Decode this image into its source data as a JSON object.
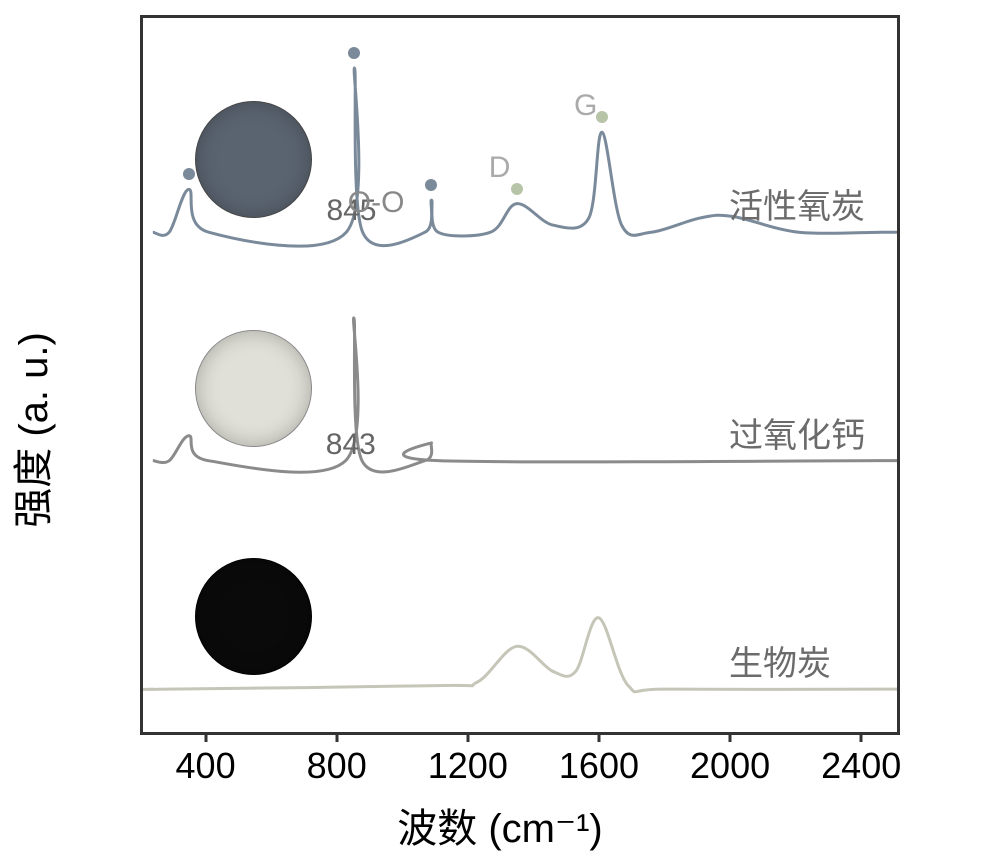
{
  "chart": {
    "type": "line-spectra",
    "xlabel": "波数 (cm⁻¹)",
    "ylabel": "强度 (a. u.)",
    "xlim": [
      200,
      2500
    ],
    "ylim": [
      0,
      1
    ],
    "xtick_values": [
      400,
      800,
      1200,
      1600,
      2000,
      2400
    ],
    "xtick_labels": [
      "400",
      "800",
      "1200",
      "1600",
      "2000",
      "2400"
    ],
    "background_color": "#ffffff",
    "border_color": "#333333",
    "line_width": 3,
    "spectra": [
      {
        "key": "active_oxygen_carbon",
        "label": "活性氧炭",
        "y_offset": 0.7,
        "color": "#7a8a9a",
        "sample_fill": "#5a6470",
        "sample_stroke": "#444",
        "peaks": [
          {
            "x": 280,
            "h": 0.0
          },
          {
            "x": 340,
            "h": 0.06
          },
          {
            "x": 400,
            "h": 0.0
          },
          {
            "x": 820,
            "h": 0.0
          },
          {
            "x": 845,
            "h": 0.23
          },
          {
            "x": 870,
            "h": 0.0
          },
          {
            "x": 1060,
            "h": 0.0
          },
          {
            "x": 1080,
            "h": 0.045
          },
          {
            "x": 1100,
            "h": 0.0
          },
          {
            "x": 1260,
            "h": 0.0
          },
          {
            "x": 1340,
            "h": 0.04
          },
          {
            "x": 1450,
            "h": 0.01
          },
          {
            "x": 1560,
            "h": 0.02
          },
          {
            "x": 1600,
            "h": 0.14
          },
          {
            "x": 1660,
            "h": 0.01
          },
          {
            "x": 1750,
            "h": 0.0
          },
          {
            "x": 1900,
            "h": 0.02
          },
          {
            "x": 2000,
            "h": 0.022
          },
          {
            "x": 2200,
            "h": 0.0
          },
          {
            "x": 2450,
            "h": 0.0
          }
        ],
        "markers": [
          {
            "x": 340,
            "color": "#7a8a9a"
          },
          {
            "x": 845,
            "color": "#7a8a9a"
          },
          {
            "x": 1080,
            "color": "#7a8a9a"
          },
          {
            "x": 1340,
            "color": "#b8c4a8"
          },
          {
            "x": 1600,
            "color": "#b8c4a8"
          }
        ],
        "peak_annotations": [
          {
            "x": 845,
            "text": "845",
            "dy": -35
          },
          {
            "x": 910,
            "text": "O-O",
            "dy": -8,
            "color": "#888"
          },
          {
            "x": 1340,
            "text": "D",
            "dy": -50,
            "color": "#aaa"
          },
          {
            "x": 1600,
            "text": "G",
            "dy": -40,
            "color": "#aaa"
          }
        ]
      },
      {
        "key": "calcium_peroxide",
        "label": "过氧化钙",
        "y_offset": 0.38,
        "color": "#8b8b8b",
        "sample_fill": "#e0e0d8",
        "sample_stroke": "#888",
        "peaks": [
          {
            "x": 280,
            "h": 0.0
          },
          {
            "x": 340,
            "h": 0.035
          },
          {
            "x": 400,
            "h": 0.0
          },
          {
            "x": 818,
            "h": 0.0
          },
          {
            "x": 843,
            "h": 0.2
          },
          {
            "x": 868,
            "h": 0.0
          },
          {
            "x": 1060,
            "h": 0.0
          },
          {
            "x": 1080,
            "h": 0.025
          },
          {
            "x": 1100,
            "h": 0.0
          },
          {
            "x": 2450,
            "h": 0.0
          }
        ],
        "markers": [],
        "peak_annotations": [
          {
            "x": 843,
            "text": "843",
            "dy": -30
          }
        ]
      },
      {
        "key": "biochar",
        "label": "生物炭",
        "y_offset": 0.06,
        "color": "#c5c5b8",
        "sample_fill": "#0a0a0a",
        "sample_stroke": "#000",
        "peaks": [
          {
            "x": 280,
            "h": 0.0
          },
          {
            "x": 1100,
            "h": 0.005
          },
          {
            "x": 1220,
            "h": 0.01
          },
          {
            "x": 1340,
            "h": 0.06
          },
          {
            "x": 1450,
            "h": 0.025
          },
          {
            "x": 1520,
            "h": 0.025
          },
          {
            "x": 1590,
            "h": 0.1
          },
          {
            "x": 1680,
            "h": 0.005
          },
          {
            "x": 1800,
            "h": 0.0
          },
          {
            "x": 2450,
            "h": 0.0
          }
        ],
        "markers": [],
        "peak_annotations": []
      }
    ]
  }
}
